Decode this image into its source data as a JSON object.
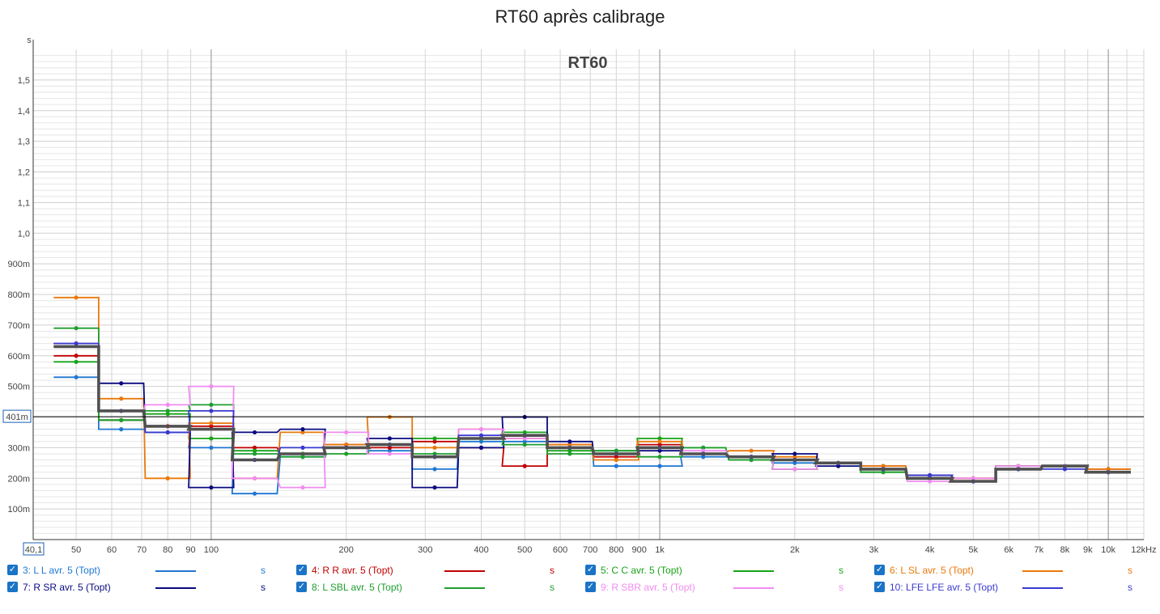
{
  "chart_data": {
    "type": "line",
    "title": "RT60 après calibrage",
    "watermark": "RT60",
    "y_unit": "s",
    "x_axis": {
      "scale": "log",
      "range": [
        40.1,
        12000
      ],
      "start_label": "40,1",
      "end_label": "12kHz",
      "tick_labels": [
        {
          "v": 50,
          "t": "50"
        },
        {
          "v": 60,
          "t": "60"
        },
        {
          "v": 70,
          "t": "70"
        },
        {
          "v": 80,
          "t": "80"
        },
        {
          "v": 90,
          "t": "90"
        },
        {
          "v": 100,
          "t": "100"
        },
        {
          "v": 200,
          "t": "200"
        },
        {
          "v": 300,
          "t": "300"
        },
        {
          "v": 400,
          "t": "400"
        },
        {
          "v": 500,
          "t": "500"
        },
        {
          "v": 600,
          "t": "600"
        },
        {
          "v": 700,
          "t": "700"
        },
        {
          "v": 800,
          "t": "800"
        },
        {
          "v": 900,
          "t": "900"
        },
        {
          "v": 1000,
          "t": "1k"
        },
        {
          "v": 2000,
          "t": "2k"
        },
        {
          "v": 3000,
          "t": "3k"
        },
        {
          "v": 4000,
          "t": "4k"
        },
        {
          "v": 5000,
          "t": "5k"
        },
        {
          "v": 6000,
          "t": "6k"
        },
        {
          "v": 7000,
          "t": "7k"
        },
        {
          "v": 8000,
          "t": "8k"
        },
        {
          "v": 9000,
          "t": "9k"
        },
        {
          "v": 10000,
          "t": "10k"
        }
      ]
    },
    "y_axis": {
      "range": [
        0,
        1.6
      ],
      "tick_labels": [
        {
          "v": 0.1,
          "t": "100m"
        },
        {
          "v": 0.2,
          "t": "200m"
        },
        {
          "v": 0.3,
          "t": "300m"
        },
        {
          "v": 0.4,
          "t": "400m"
        },
        {
          "v": 0.5,
          "t": "500m"
        },
        {
          "v": 0.6,
          "t": "600m"
        },
        {
          "v": 0.7,
          "t": "700m"
        },
        {
          "v": 0.8,
          "t": "800m"
        },
        {
          "v": 0.9,
          "t": "900m"
        },
        {
          "v": 1.0,
          "t": "1,0"
        },
        {
          "v": 1.1,
          "t": "1,1"
        },
        {
          "v": 1.2,
          "t": "1,2"
        },
        {
          "v": 1.3,
          "t": "1,3"
        },
        {
          "v": 1.4,
          "t": "1,4"
        },
        {
          "v": 1.5,
          "t": "1,5"
        }
      ]
    },
    "cursor": {
      "value": 0.401,
      "label": "401m"
    },
    "grid": true,
    "band_centers": [
      50,
      63,
      80,
      100,
      125,
      160,
      200,
      250,
      315,
      400,
      500,
      630,
      800,
      1000,
      1250,
      1600,
      2000,
      2500,
      3150,
      4000,
      5000,
      6300,
      8000,
      10000
    ],
    "series": [
      {
        "name": "3: L L avr. 5 (Topt)",
        "color": "#1f77d0",
        "values": [
          0.53,
          0.36,
          0.35,
          0.3,
          0.15,
          0.27,
          0.3,
          0.29,
          0.23,
          0.32,
          0.32,
          0.3,
          0.24,
          0.24,
          0.27,
          0.27,
          0.25,
          0.25,
          0.23,
          0.2,
          0.19,
          0.23,
          0.24,
          0.22
        ]
      },
      {
        "name": "4: R R avr. 5 (Topt)",
        "color": "#c00000",
        "values": [
          0.6,
          0.39,
          0.37,
          0.37,
          0.3,
          0.28,
          0.31,
          0.3,
          0.32,
          0.3,
          0.24,
          0.31,
          0.27,
          0.31,
          0.28,
          0.27,
          0.26,
          0.25,
          0.24,
          0.21,
          0.2,
          0.24,
          0.24,
          0.23
        ]
      },
      {
        "name": "5: C C avr. 5 (Topt)",
        "color": "#17a317",
        "values": [
          0.58,
          0.39,
          0.41,
          0.33,
          0.29,
          0.28,
          0.3,
          0.31,
          0.33,
          0.33,
          0.35,
          0.29,
          0.29,
          0.33,
          0.3,
          0.26,
          0.23,
          0.25,
          0.22,
          0.2,
          0.19,
          0.24,
          0.24,
          0.22
        ]
      },
      {
        "name": "6: L SL avr. 5 (Topt)",
        "color": "#e8790b",
        "values": [
          0.79,
          0.46,
          0.2,
          0.38,
          0.2,
          0.35,
          0.31,
          0.4,
          0.3,
          0.36,
          0.33,
          0.31,
          0.26,
          0.32,
          0.28,
          0.29,
          0.27,
          0.25,
          0.24,
          0.2,
          0.2,
          0.24,
          0.24,
          0.23
        ]
      },
      {
        "name": "7: R SR avr. 5 (Topt)",
        "color": "#0a0a80",
        "values": [
          0.64,
          0.51,
          0.35,
          0.17,
          0.35,
          0.36,
          0.3,
          0.33,
          0.17,
          0.3,
          0.4,
          0.32,
          0.28,
          0.29,
          0.28,
          0.27,
          0.28,
          0.24,
          0.23,
          0.21,
          0.19,
          0.23,
          0.24,
          0.22
        ]
      },
      {
        "name": "8: L SBL avr. 5 (Topt)",
        "color": "#1e9e2e",
        "values": [
          0.69,
          0.39,
          0.42,
          0.44,
          0.28,
          0.27,
          0.28,
          0.31,
          0.28,
          0.33,
          0.31,
          0.28,
          0.29,
          0.27,
          0.3,
          0.26,
          0.23,
          0.25,
          0.22,
          0.2,
          0.19,
          0.24,
          0.24,
          0.22
        ]
      },
      {
        "name": "9: R SBR avr. 5 (Topt)",
        "color": "#f08cf0",
        "values": [
          0.64,
          0.42,
          0.44,
          0.5,
          0.2,
          0.17,
          0.35,
          0.28,
          0.27,
          0.36,
          0.33,
          0.3,
          0.28,
          0.3,
          0.29,
          0.27,
          0.23,
          0.25,
          0.23,
          0.19,
          0.2,
          0.24,
          0.24,
          0.22
        ]
      },
      {
        "name": "10: LFE LFE avr. 5 (Topt)",
        "color": "#3a3ad0",
        "values": [
          0.64,
          0.42,
          0.35,
          0.42,
          0.26,
          0.3,
          0.3,
          0.31,
          0.27,
          0.34,
          0.34,
          0.3,
          0.28,
          0.3,
          0.28,
          0.27,
          0.26,
          0.25,
          0.23,
          0.21,
          0.19,
          0.23,
          0.23,
          0.22
        ]
      }
    ],
    "average": {
      "color": "#505050",
      "values": [
        0.63,
        0.42,
        0.37,
        0.36,
        0.26,
        0.28,
        0.3,
        0.31,
        0.27,
        0.33,
        0.34,
        0.3,
        0.28,
        0.3,
        0.28,
        0.27,
        0.26,
        0.25,
        0.23,
        0.2,
        0.19,
        0.23,
        0.24,
        0.22
      ]
    }
  },
  "legend": {
    "check_glyph": "✓",
    "unit": "s",
    "items": [
      {
        "label": "3: L L avr. 5 (Topt)",
        "color": "#1f77d0",
        "text_color": "#1f77d0"
      },
      {
        "label": "4: R R avr. 5 (Topt)",
        "color": "#c00000",
        "text_color": "#c00000"
      },
      {
        "label": "5: C C avr. 5 (Topt)",
        "color": "#17a317",
        "text_color": "#17a317"
      },
      {
        "label": "6: L SL avr. 5 (Topt)",
        "color": "#e8790b",
        "text_color": "#e8790b"
      },
      {
        "label": "7: R SR avr. 5 (Topt)",
        "color": "#0a0a80",
        "text_color": "#0a0a80"
      },
      {
        "label": "8: L SBL avr. 5 (Topt)",
        "color": "#1e9e2e",
        "text_color": "#1e9e2e"
      },
      {
        "label": "9: R SBR avr. 5 (Topt)",
        "color": "#f08cf0",
        "text_color": "#f08cf0"
      },
      {
        "label": "10: LFE LFE avr. 5 (Topt)",
        "color": "#3a3ad0",
        "text_color": "#3a3ad0"
      }
    ]
  }
}
